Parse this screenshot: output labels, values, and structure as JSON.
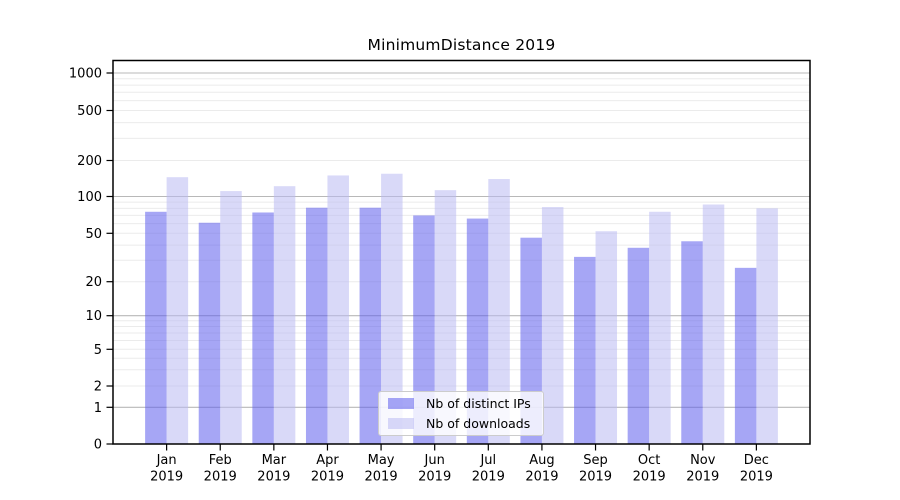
{
  "title": "MinimumDistance 2019",
  "chart_data": {
    "type": "bar",
    "title": "MinimumDistance 2019",
    "categories": [
      "Jan",
      "Feb",
      "Mar",
      "Apr",
      "May",
      "Jun",
      "Jul",
      "Aug",
      "Sep",
      "Oct",
      "Nov",
      "Dec"
    ],
    "year_label": "2019",
    "series": [
      {
        "name": "Nb of distinct IPs",
        "color": "rgba(93,93,237,0.55)",
        "values": [
          75,
          61,
          74,
          81,
          81,
          70,
          66,
          46,
          32,
          38,
          43,
          26
        ]
      },
      {
        "name": "Nb of downloads",
        "color": "rgba(186,186,242,0.55)",
        "values": [
          145,
          111,
          122,
          150,
          155,
          113,
          140,
          82,
          52,
          75,
          86,
          80
        ]
      }
    ],
    "xlabel": "",
    "ylabel": "",
    "yscale": "symlog",
    "y_ticks": [
      0,
      1,
      2,
      5,
      10,
      20,
      50,
      100,
      200,
      500,
      1000
    ],
    "ylim": [
      0,
      1270
    ],
    "grid": true,
    "legend_position": "lower center"
  },
  "colors": {
    "major_grid": "#b8b8b8",
    "minor_grid": "#ebebeb",
    "spine": "#000000",
    "tick_text": "#000000",
    "background": "#ffffff"
  }
}
